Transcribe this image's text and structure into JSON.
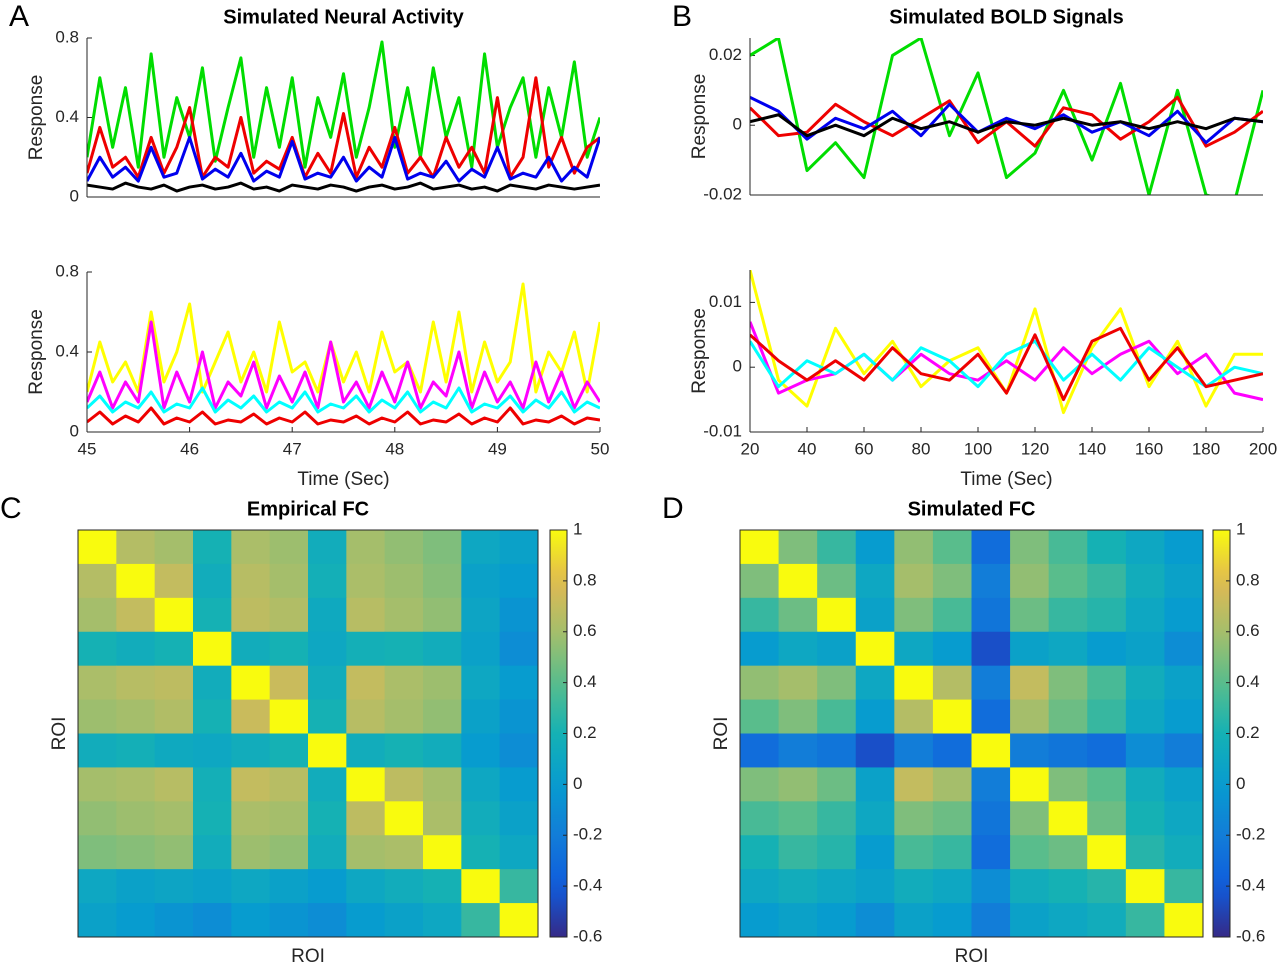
{
  "chart_data": [
    {
      "type": "line",
      "panel_label": "A",
      "title": "Simulated Neural Activity",
      "ylabel": "Response",
      "x": [
        45,
        45.125,
        45.25,
        45.375,
        45.5,
        45.625,
        45.75,
        45.875,
        46,
        46.125,
        46.25,
        46.375,
        46.5,
        46.625,
        46.75,
        46.875,
        47,
        47.125,
        47.25,
        47.375,
        47.5,
        47.625,
        47.75,
        47.875,
        48,
        48.125,
        48.25,
        48.375,
        48.5,
        48.625,
        48.75,
        48.875,
        49,
        49.125,
        49.25,
        49.375,
        49.5,
        49.625,
        49.75,
        49.875,
        50
      ],
      "xlim": [
        45,
        50
      ],
      "ylim": [
        0,
        0.8
      ],
      "yticks": [
        0,
        0.4,
        0.8
      ],
      "series": [
        {
          "color": "#00dd00",
          "values": [
            0.2,
            0.6,
            0.25,
            0.55,
            0.15,
            0.72,
            0.2,
            0.5,
            0.3,
            0.65,
            0.18,
            0.45,
            0.7,
            0.2,
            0.55,
            0.25,
            0.6,
            0.15,
            0.5,
            0.3,
            0.62,
            0.2,
            0.45,
            0.78,
            0.25,
            0.55,
            0.2,
            0.65,
            0.3,
            0.5,
            0.15,
            0.72,
            0.25,
            0.45,
            0.6,
            0.2,
            0.55,
            0.3,
            0.68,
            0.2,
            0.4
          ]
        },
        {
          "color": "#ee0000",
          "values": [
            0.12,
            0.35,
            0.15,
            0.2,
            0.1,
            0.3,
            0.12,
            0.25,
            0.45,
            0.1,
            0.2,
            0.15,
            0.4,
            0.12,
            0.18,
            0.14,
            0.3,
            0.1,
            0.22,
            0.12,
            0.42,
            0.1,
            0.25,
            0.15,
            0.35,
            0.12,
            0.2,
            0.1,
            0.3,
            0.15,
            0.25,
            0.12,
            0.5,
            0.1,
            0.2,
            0.6,
            0.15,
            0.3,
            0.12,
            0.25,
            0.3
          ]
        },
        {
          "color": "#0000ee",
          "values": [
            0.08,
            0.2,
            0.1,
            0.15,
            0.08,
            0.25,
            0.1,
            0.12,
            0.3,
            0.09,
            0.14,
            0.1,
            0.22,
            0.08,
            0.13,
            0.1,
            0.28,
            0.09,
            0.12,
            0.1,
            0.2,
            0.08,
            0.15,
            0.1,
            0.3,
            0.09,
            0.12,
            0.1,
            0.18,
            0.08,
            0.14,
            0.1,
            0.25,
            0.09,
            0.12,
            0.1,
            0.2,
            0.08,
            0.15,
            0.1,
            0.3
          ]
        },
        {
          "color": "#000000",
          "values": [
            0.06,
            0.05,
            0.04,
            0.07,
            0.05,
            0.04,
            0.06,
            0.03,
            0.05,
            0.06,
            0.04,
            0.05,
            0.07,
            0.04,
            0.05,
            0.03,
            0.06,
            0.05,
            0.04,
            0.06,
            0.05,
            0.03,
            0.05,
            0.06,
            0.04,
            0.05,
            0.07,
            0.04,
            0.05,
            0.06,
            0.04,
            0.05,
            0.03,
            0.06,
            0.05,
            0.04,
            0.06,
            0.05,
            0.04,
            0.05,
            0.06
          ]
        }
      ]
    },
    {
      "type": "line",
      "ylabel": "Response",
      "xlabel": "Time (Sec)",
      "x": [
        45,
        45.125,
        45.25,
        45.375,
        45.5,
        45.625,
        45.75,
        45.875,
        46,
        46.125,
        46.25,
        46.375,
        46.5,
        46.625,
        46.75,
        46.875,
        47,
        47.125,
        47.25,
        47.375,
        47.5,
        47.625,
        47.75,
        47.875,
        48,
        48.125,
        48.25,
        48.375,
        48.5,
        48.625,
        48.75,
        48.875,
        49,
        49.125,
        49.25,
        49.375,
        49.5,
        49.625,
        49.75,
        49.875,
        50
      ],
      "xlim": [
        45,
        50
      ],
      "xticks": [
        45,
        46,
        47,
        48,
        49,
        50
      ],
      "ylim": [
        0,
        0.8
      ],
      "yticks": [
        0,
        0.4,
        0.8
      ],
      "series": [
        {
          "color": "#ffff00",
          "values": [
            0.2,
            0.45,
            0.25,
            0.35,
            0.2,
            0.6,
            0.25,
            0.4,
            0.64,
            0.2,
            0.35,
            0.5,
            0.25,
            0.4,
            0.2,
            0.55,
            0.3,
            0.35,
            0.2,
            0.45,
            0.25,
            0.4,
            0.2,
            0.5,
            0.3,
            0.35,
            0.2,
            0.55,
            0.25,
            0.6,
            0.2,
            0.45,
            0.25,
            0.35,
            0.74,
            0.2,
            0.4,
            0.3,
            0.5,
            0.2,
            0.55
          ]
        },
        {
          "color": "#ff00ff",
          "values": [
            0.15,
            0.3,
            0.12,
            0.25,
            0.15,
            0.55,
            0.12,
            0.3,
            0.15,
            0.4,
            0.12,
            0.25,
            0.18,
            0.35,
            0.12,
            0.28,
            0.15,
            0.3,
            0.12,
            0.45,
            0.15,
            0.25,
            0.12,
            0.3,
            0.15,
            0.35,
            0.12,
            0.25,
            0.18,
            0.4,
            0.12,
            0.3,
            0.15,
            0.25,
            0.12,
            0.35,
            0.15,
            0.3,
            0.12,
            0.25,
            0.15
          ]
        },
        {
          "color": "#00ffff",
          "values": [
            0.12,
            0.18,
            0.1,
            0.15,
            0.12,
            0.2,
            0.1,
            0.14,
            0.12,
            0.22,
            0.1,
            0.16,
            0.12,
            0.18,
            0.1,
            0.15,
            0.12,
            0.2,
            0.1,
            0.14,
            0.12,
            0.18,
            0.1,
            0.16,
            0.12,
            0.2,
            0.1,
            0.15,
            0.12,
            0.22,
            0.1,
            0.14,
            0.12,
            0.18,
            0.1,
            0.16,
            0.12,
            0.2,
            0.1,
            0.15,
            0.12
          ]
        },
        {
          "color": "#ee0000",
          "values": [
            0.05,
            0.1,
            0.04,
            0.08,
            0.05,
            0.12,
            0.04,
            0.07,
            0.05,
            0.1,
            0.04,
            0.06,
            0.05,
            0.09,
            0.04,
            0.07,
            0.05,
            0.1,
            0.04,
            0.06,
            0.05,
            0.08,
            0.04,
            0.07,
            0.05,
            0.1,
            0.04,
            0.06,
            0.05,
            0.09,
            0.04,
            0.07,
            0.05,
            0.12,
            0.04,
            0.06,
            0.05,
            0.08,
            0.04,
            0.07,
            0.06
          ]
        }
      ]
    },
    {
      "type": "line",
      "panel_label": "B",
      "title": "Simulated BOLD Signals",
      "ylabel": "Response",
      "x": [
        20,
        30,
        40,
        50,
        60,
        70,
        80,
        90,
        100,
        110,
        120,
        130,
        140,
        150,
        160,
        170,
        180,
        190,
        200
      ],
      "xlim": [
        20,
        200
      ],
      "ylim": [
        -0.02,
        0.025
      ],
      "yticks": [
        -0.02,
        0,
        0.02
      ],
      "series": [
        {
          "color": "#00dd00",
          "values": [
            0.02,
            0.025,
            -0.013,
            -0.005,
            -0.015,
            0.02,
            0.025,
            -0.003,
            0.015,
            -0.015,
            -0.008,
            0.01,
            -0.01,
            0.012,
            -0.02,
            0.01,
            -0.02,
            -0.022,
            0.01
          ]
        },
        {
          "color": "#ee0000",
          "values": [
            0.005,
            -0.003,
            -0.002,
            0.006,
            0.001,
            -0.003,
            0.002,
            0.007,
            -0.005,
            0.001,
            -0.006,
            0.005,
            0.003,
            -0.004,
            0.001,
            0.008,
            -0.006,
            -0.002,
            0.004
          ]
        },
        {
          "color": "#0000ee",
          "values": [
            0.008,
            0.004,
            -0.004,
            0.002,
            -0.001,
            0.004,
            -0.003,
            0.006,
            -0.002,
            0.002,
            -0.001,
            0.003,
            -0.002,
            0.001,
            -0.003,
            0.004,
            -0.005,
            0.002,
            0.001
          ]
        },
        {
          "color": "#000000",
          "values": [
            0.001,
            0.003,
            -0.003,
            0,
            -0.003,
            0.002,
            -0.001,
            0.001,
            -0.002,
            0.001,
            0,
            0.002,
            0,
            0.001,
            -0.001,
            0.001,
            -0.001,
            0.002,
            0.001
          ]
        }
      ]
    },
    {
      "type": "line",
      "ylabel": "Response",
      "xlabel": "Time (Sec)",
      "x": [
        20,
        30,
        40,
        50,
        60,
        70,
        80,
        90,
        100,
        110,
        120,
        130,
        140,
        150,
        160,
        170,
        180,
        190,
        200
      ],
      "xlim": [
        20,
        200
      ],
      "xticks": [
        20,
        40,
        60,
        80,
        100,
        120,
        140,
        160,
        180,
        200
      ],
      "ylim": [
        -0.01,
        0.015
      ],
      "yticks": [
        -0.01,
        0,
        0.01
      ],
      "series": [
        {
          "color": "#ffff00",
          "values": [
            0.015,
            -0.002,
            -0.006,
            0.006,
            -0.001,
            0.004,
            -0.003,
            0.001,
            0.003,
            -0.004,
            0.009,
            -0.007,
            0.003,
            0.009,
            -0.003,
            0.004,
            -0.006,
            0.002,
            0.002
          ]
        },
        {
          "color": "#ff00ff",
          "values": [
            0.007,
            -0.004,
            -0.002,
            -0.001,
            0.002,
            -0.002,
            0.002,
            -0.001,
            -0.002,
            0.001,
            -0.002,
            0.003,
            -0.001,
            0.002,
            0.004,
            -0.001,
            0.002,
            -0.004,
            -0.005
          ]
        },
        {
          "color": "#00ffff",
          "values": [
            0.004,
            -0.003,
            0.001,
            -0.001,
            0.002,
            -0.002,
            0.003,
            0.001,
            -0.003,
            0.002,
            0.004,
            -0.002,
            0.002,
            -0.002,
            0.003,
            0,
            -0.003,
            0,
            -0.001
          ]
        },
        {
          "color": "#ee0000",
          "values": [
            0.005,
            0.001,
            -0.002,
            0.001,
            -0.002,
            0.003,
            -0.001,
            -0.002,
            0.002,
            -0.004,
            0.005,
            -0.005,
            0.004,
            0.006,
            -0.002,
            0.003,
            -0.003,
            -0.002,
            -0.001
          ]
        }
      ]
    },
    {
      "type": "heatmap",
      "panel_label": "C",
      "title": "Empirical FC",
      "xlabel": "ROI",
      "ylabel": "ROI",
      "colormap": "parula",
      "zlim": [
        -0.6,
        1
      ],
      "zticks": [
        1,
        0.8,
        0.6,
        0.4,
        0.2,
        0,
        -0.2,
        -0.4,
        -0.6
      ],
      "z": [
        [
          1,
          0.65,
          0.6,
          0.2,
          0.62,
          0.58,
          0.15,
          0.6,
          0.55,
          0.5,
          0.1,
          0.05
        ],
        [
          0.65,
          1,
          0.7,
          0.15,
          0.66,
          0.6,
          0.18,
          0.62,
          0.58,
          0.52,
          0.05,
          0
        ],
        [
          0.6,
          0.7,
          1,
          0.2,
          0.68,
          0.64,
          0.12,
          0.66,
          0.6,
          0.55,
          0.08,
          -0.05
        ],
        [
          0.2,
          0.15,
          0.2,
          1,
          0.15,
          0.2,
          0.1,
          0.18,
          0.2,
          0.15,
          0.05,
          -0.1
        ],
        [
          0.62,
          0.66,
          0.68,
          0.15,
          1,
          0.72,
          0.15,
          0.7,
          0.62,
          0.58,
          0.1,
          0
        ],
        [
          0.58,
          0.6,
          0.64,
          0.2,
          0.72,
          1,
          0.2,
          0.66,
          0.6,
          0.55,
          0.05,
          -0.05
        ],
        [
          0.15,
          0.18,
          0.12,
          0.1,
          0.15,
          0.2,
          1,
          0.15,
          0.2,
          0.15,
          0,
          -0.1
        ],
        [
          0.6,
          0.62,
          0.66,
          0.18,
          0.7,
          0.66,
          0.15,
          1,
          0.68,
          0.6,
          0.1,
          0
        ],
        [
          0.55,
          0.58,
          0.6,
          0.2,
          0.62,
          0.6,
          0.2,
          0.68,
          1,
          0.62,
          0.15,
          0.05
        ],
        [
          0.5,
          0.52,
          0.55,
          0.15,
          0.58,
          0.55,
          0.15,
          0.6,
          0.62,
          1,
          0.2,
          0.1
        ],
        [
          0.1,
          0.05,
          0.08,
          0.05,
          0.1,
          0.05,
          0,
          0.1,
          0.15,
          0.2,
          1,
          0.3
        ],
        [
          0.05,
          0,
          -0.05,
          -0.1,
          0,
          -0.05,
          -0.1,
          0,
          0.05,
          0.1,
          0.3,
          1
        ]
      ]
    },
    {
      "type": "heatmap",
      "panel_label": "D",
      "title": "Simulated FC",
      "xlabel": "ROI",
      "ylabel": "ROI",
      "colormap": "parula",
      "zlim": [
        -0.6,
        1
      ],
      "zticks": [
        1,
        0.8,
        0.6,
        0.4,
        0.2,
        0,
        -0.2,
        -0.4,
        -0.6
      ],
      "z": [
        [
          1,
          0.5,
          0.3,
          0,
          0.55,
          0.4,
          -0.3,
          0.5,
          0.35,
          0.2,
          0.1,
          0
        ],
        [
          0.5,
          1,
          0.45,
          0.1,
          0.6,
          0.5,
          -0.2,
          0.55,
          0.4,
          0.3,
          0.15,
          0.05
        ],
        [
          0.3,
          0.45,
          1,
          0.05,
          0.5,
          0.35,
          -0.25,
          0.45,
          0.3,
          0.25,
          0.1,
          0
        ],
        [
          0,
          0.1,
          0.05,
          1,
          0.1,
          0,
          -0.45,
          0.05,
          0.1,
          0,
          0.05,
          -0.1
        ],
        [
          0.55,
          0.6,
          0.5,
          0.1,
          1,
          0.65,
          -0.2,
          0.7,
          0.5,
          0.35,
          0.15,
          0.05
        ],
        [
          0.4,
          0.5,
          0.35,
          0,
          0.65,
          1,
          -0.3,
          0.6,
          0.45,
          0.3,
          0.1,
          0
        ],
        [
          -0.3,
          -0.2,
          -0.25,
          -0.45,
          -0.2,
          -0.3,
          1,
          -0.2,
          -0.25,
          -0.3,
          -0.1,
          -0.2
        ],
        [
          0.5,
          0.55,
          0.45,
          0.05,
          0.7,
          0.6,
          -0.2,
          1,
          0.5,
          0.4,
          0.15,
          0.05
        ],
        [
          0.35,
          0.4,
          0.3,
          0.1,
          0.5,
          0.45,
          -0.25,
          0.5,
          1,
          0.45,
          0.2,
          0.1
        ],
        [
          0.2,
          0.3,
          0.25,
          0,
          0.35,
          0.3,
          -0.3,
          0.4,
          0.45,
          1,
          0.25,
          0.15
        ],
        [
          0.1,
          0.15,
          0.1,
          0.05,
          0.15,
          0.1,
          -0.1,
          0.15,
          0.2,
          0.25,
          1,
          0.3
        ],
        [
          0,
          0.05,
          0,
          -0.1,
          0.05,
          0,
          -0.2,
          0.05,
          0.1,
          0.15,
          0.3,
          1
        ]
      ]
    }
  ]
}
